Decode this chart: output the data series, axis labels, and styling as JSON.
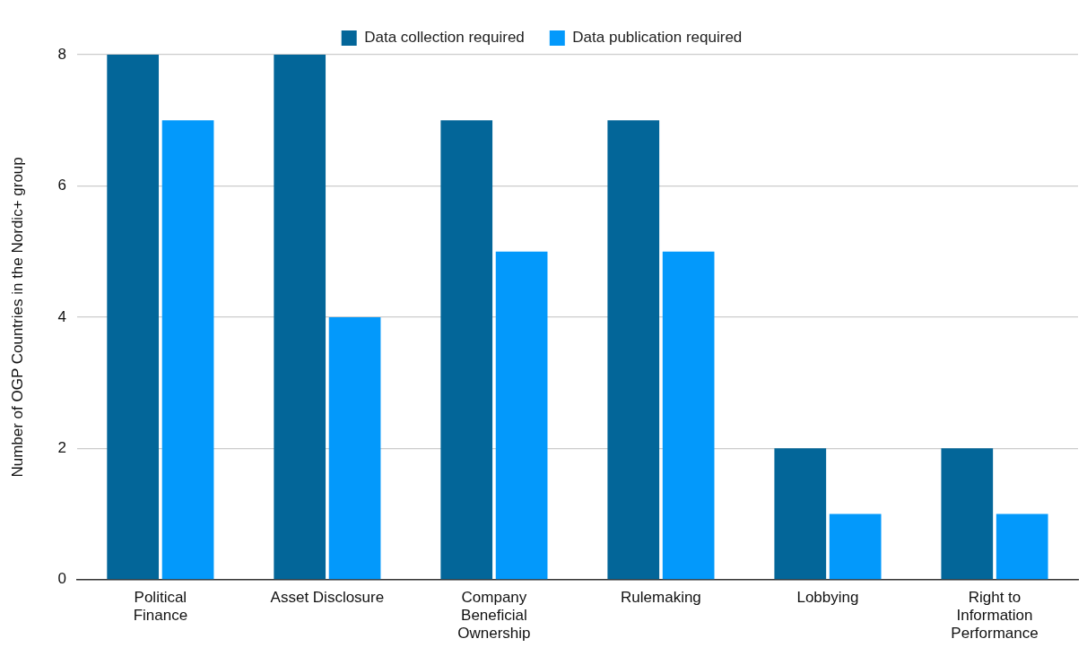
{
  "chart_data": {
    "type": "bar",
    "ylabel": "Number of OGP Countries in the Nordic+ group",
    "categories": [
      "Political Finance",
      "Asset Disclosure",
      "Company Beneficial Ownership",
      "Rulemaking",
      "Lobbying",
      "Right to Information Performance"
    ],
    "series": [
      {
        "name": "Data collection required",
        "color": "#036699",
        "values": [
          8,
          8,
          7,
          7,
          2,
          2
        ]
      },
      {
        "name": "Data publication required",
        "color": "#0399fb",
        "values": [
          7,
          4,
          5,
          5,
          1,
          1
        ]
      }
    ],
    "ylim": [
      0,
      8
    ],
    "yticks": [
      0,
      2,
      4,
      6,
      8
    ],
    "grid": "y",
    "legend": "top"
  }
}
